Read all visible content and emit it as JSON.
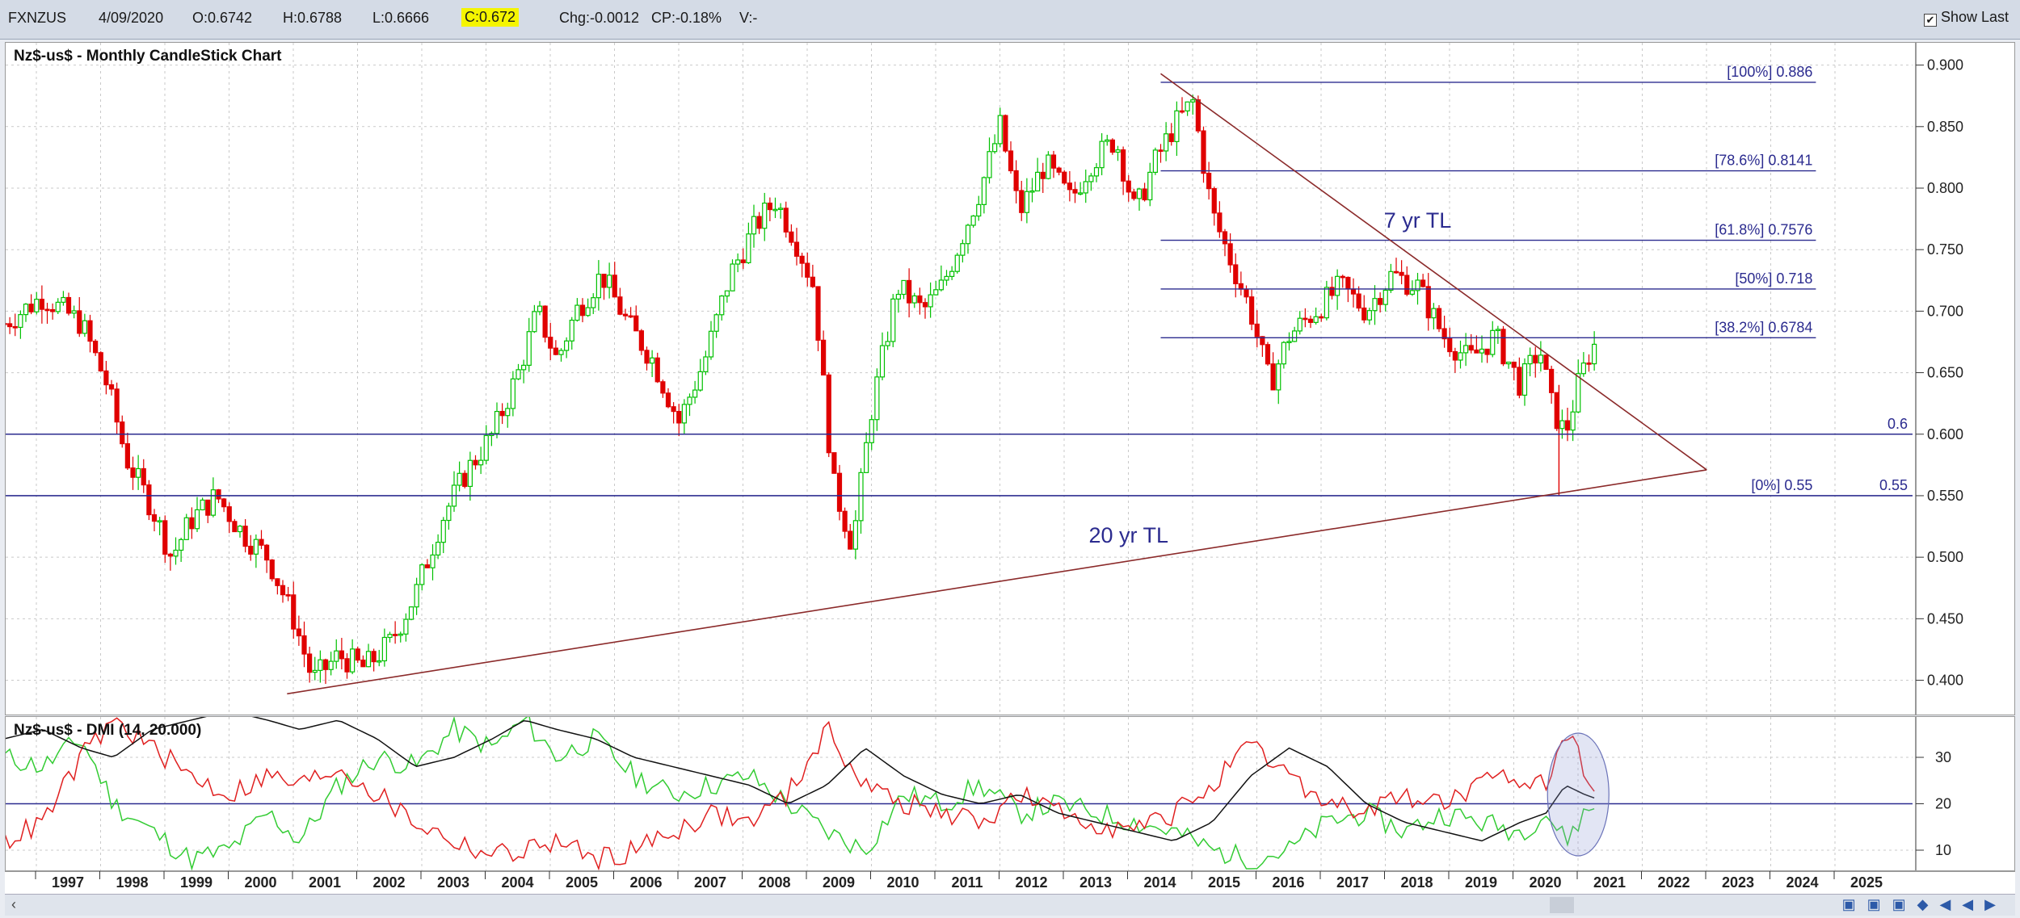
{
  "toolbar": {
    "symbol": "FXNZUS",
    "date": "4/09/2020",
    "open": "O:0.6742",
    "high": "H:0.6788",
    "low": "L:0.6666",
    "close": "C:0.672",
    "change": "Chg:-0.0012",
    "change_pct": "CP:-0.18%",
    "volume": "V:-",
    "show_last_label": "Show Last",
    "show_last_checked": true
  },
  "colors": {
    "up_candle": "#00c000",
    "down_candle": "#e00000",
    "horizontal_lines": "#2b2b8f",
    "trendline": "#8b2a2a",
    "dmi_plus": "#33cc33",
    "dmi_minus": "#e02020",
    "adx": "#111111",
    "close_highlight": "#f5f500"
  },
  "chart_data": [
    {
      "type": "candlestick",
      "title": "Nz$-us$ - Monthly CandleStick Chart",
      "ylim": [
        0.38,
        0.905
      ],
      "xlim": [
        1996.0,
        2025.9
      ],
      "y_ticks": [
        "0.400",
        "0.450",
        "0.500",
        "0.550",
        "0.600",
        "0.650",
        "0.700",
        "0.750",
        "0.800",
        "0.850",
        "0.900"
      ],
      "x_ticks": [
        "1997",
        "1998",
        "1999",
        "2000",
        "2001",
        "2002",
        "2003",
        "2004",
        "2005",
        "2006",
        "2007",
        "2008",
        "2009",
        "2010",
        "2011",
        "2012",
        "2013",
        "2014",
        "2015",
        "2016",
        "2017",
        "2018",
        "2019",
        "2020",
        "2021",
        "2022",
        "2023",
        "2024",
        "2025"
      ],
      "grid": true,
      "close_points": [
        [
          1996.0,
          0.69
        ],
        [
          1996.6,
          0.712
        ],
        [
          1997.2,
          0.69
        ],
        [
          1997.6,
          0.64
        ],
        [
          1997.9,
          0.58
        ],
        [
          1998.3,
          0.54
        ],
        [
          1998.6,
          0.5
        ],
        [
          1998.9,
          0.53
        ],
        [
          1999.3,
          0.55
        ],
        [
          1999.7,
          0.52
        ],
        [
          2000.1,
          0.5
        ],
        [
          2000.5,
          0.45
        ],
        [
          2000.8,
          0.4
        ],
        [
          2001.2,
          0.42
        ],
        [
          2001.6,
          0.41
        ],
        [
          2002.0,
          0.43
        ],
        [
          2002.4,
          0.47
        ],
        [
          2002.8,
          0.53
        ],
        [
          2003.2,
          0.57
        ],
        [
          2003.6,
          0.6
        ],
        [
          2004.0,
          0.65
        ],
        [
          2004.3,
          0.7
        ],
        [
          2004.6,
          0.66
        ],
        [
          2004.9,
          0.7
        ],
        [
          2005.3,
          0.73
        ],
        [
          2005.7,
          0.69
        ],
        [
          2006.1,
          0.66
        ],
        [
          2006.5,
          0.61
        ],
        [
          2006.9,
          0.66
        ],
        [
          2007.3,
          0.73
        ],
        [
          2007.7,
          0.77
        ],
        [
          2008.0,
          0.79
        ],
        [
          2008.3,
          0.76
        ],
        [
          2008.6,
          0.72
        ],
        [
          2008.9,
          0.56
        ],
        [
          2009.2,
          0.51
        ],
        [
          2009.5,
          0.62
        ],
        [
          2009.9,
          0.72
        ],
        [
          2010.3,
          0.7
        ],
        [
          2010.6,
          0.72
        ],
        [
          2010.9,
          0.76
        ],
        [
          2011.2,
          0.8
        ],
        [
          2011.5,
          0.85
        ],
        [
          2011.8,
          0.78
        ],
        [
          2012.2,
          0.82
        ],
        [
          2012.6,
          0.79
        ],
        [
          2012.9,
          0.82
        ],
        [
          2013.3,
          0.84
        ],
        [
          2013.6,
          0.78
        ],
        [
          2013.9,
          0.82
        ],
        [
          2014.2,
          0.85
        ],
        [
          2014.5,
          0.87
        ],
        [
          2014.8,
          0.78
        ],
        [
          2015.1,
          0.74
        ],
        [
          2015.4,
          0.7
        ],
        [
          2015.7,
          0.64
        ],
        [
          2016.0,
          0.68
        ],
        [
          2016.4,
          0.7
        ],
        [
          2016.8,
          0.72
        ],
        [
          2017.2,
          0.7
        ],
        [
          2017.6,
          0.73
        ],
        [
          2018.0,
          0.72
        ],
        [
          2018.4,
          0.68
        ],
        [
          2018.8,
          0.66
        ],
        [
          2019.2,
          0.68
        ],
        [
          2019.6,
          0.64
        ],
        [
          2019.9,
          0.67
        ],
        [
          2020.1,
          0.62
        ],
        [
          2020.3,
          0.6
        ],
        [
          2020.5,
          0.64
        ],
        [
          2020.7,
          0.67
        ],
        [
          2020.75,
          0.672
        ]
      ],
      "horizontal_levels": [
        {
          "label": "[100%] 0.886",
          "value": 0.886
        },
        {
          "label": "[78.6%] 0.8141",
          "value": 0.8141
        },
        {
          "label": "[61.8%] 0.7576",
          "value": 0.7576
        },
        {
          "label": "[50%] 0.718",
          "value": 0.718
        },
        {
          "label": "[38.2%] 0.6784",
          "value": 0.6784
        },
        {
          "label": "[0%] 0.55",
          "value": 0.55
        }
      ],
      "support_lines": [
        {
          "label": "0.6",
          "value": 0.6
        },
        {
          "label": "0.55",
          "value": 0.55
        }
      ],
      "trendlines": [
        {
          "label": "7 yr TL",
          "from": [
            2014.0,
            0.893
          ],
          "to": [
            2022.5,
            0.571
          ]
        },
        {
          "label": "20 yr TL",
          "from": [
            2000.4,
            0.389
          ],
          "to": [
            2022.5,
            0.571
          ]
        }
      ]
    },
    {
      "type": "line",
      "title": "Nz$-us$ - DMI (14, 20.000)",
      "ylim": [
        6,
        38
      ],
      "y_ticks": [
        "10",
        "20",
        "30"
      ],
      "reference_line": 20,
      "series": [
        {
          "name": "+DI",
          "color": "#33cc33",
          "x": [
            1996.0,
            1996.6,
            1997.2,
            1997.7,
            1998.3,
            1998.9,
            1999.5,
            2000.1,
            2000.6,
            2001.2,
            2001.8,
            2002.4,
            2003.0,
            2003.6,
            2004.1,
            2004.6,
            2005.2,
            2005.8,
            2006.4,
            2007.0,
            2007.6,
            2008.2,
            2008.8,
            2009.4,
            2010.0,
            2010.6,
            2011.2,
            2011.8,
            2012.4,
            2013.0,
            2013.6,
            2014.2,
            2014.8,
            2015.4,
            2016.0,
            2016.6,
            2017.2,
            2017.8,
            2018.4,
            2019.0,
            2019.6,
            2020.0,
            2020.3,
            2020.6,
            2020.8
          ],
          "y": [
            30,
            28,
            34,
            20,
            14,
            8,
            10,
            18,
            12,
            24,
            30,
            28,
            36,
            32,
            38,
            30,
            34,
            26,
            22,
            24,
            26,
            20,
            14,
            10,
            22,
            20,
            24,
            18,
            20,
            18,
            16,
            14,
            10,
            8,
            10,
            16,
            18,
            14,
            18,
            16,
            14,
            18,
            12,
            18,
            20
          ]
        },
        {
          "name": "-DI",
          "color": "#e02020",
          "x": [
            1996.0,
            1996.6,
            1997.2,
            1997.7,
            1998.3,
            1998.9,
            1999.5,
            2000.1,
            2000.6,
            2001.2,
            2001.8,
            2002.4,
            2003.0,
            2003.6,
            2004.1,
            2004.6,
            2005.2,
            2005.8,
            2006.4,
            2007.0,
            2007.6,
            2008.2,
            2008.8,
            2009.4,
            2010.0,
            2010.6,
            2011.2,
            2011.8,
            2012.4,
            2013.0,
            2013.6,
            2014.2,
            2014.8,
            2015.4,
            2016.0,
            2016.6,
            2017.2,
            2017.8,
            2018.4,
            2019.0,
            2019.6,
            2020.0,
            2020.3,
            2020.6,
            2020.8
          ],
          "y": [
            12,
            16,
            30,
            38,
            32,
            26,
            22,
            26,
            24,
            28,
            22,
            16,
            12,
            9,
            10,
            12,
            8,
            10,
            14,
            18,
            16,
            22,
            36,
            24,
            20,
            18,
            16,
            22,
            18,
            16,
            14,
            18,
            24,
            32,
            26,
            20,
            18,
            22,
            20,
            24,
            26,
            24,
            36,
            28,
            24
          ]
        },
        {
          "name": "ADX",
          "color": "#111111",
          "x": [
            1996.0,
            1996.6,
            1997.2,
            1997.7,
            1998.3,
            1998.9,
            1999.5,
            2000.1,
            2000.6,
            2001.2,
            2001.8,
            2002.4,
            2003.0,
            2003.6,
            2004.1,
            2004.6,
            2005.2,
            2005.8,
            2006.4,
            2007.0,
            2007.6,
            2008.2,
            2008.8,
            2009.4,
            2010.0,
            2010.6,
            2011.2,
            2011.8,
            2012.4,
            2013.0,
            2013.6,
            2014.2,
            2014.8,
            2015.4,
            2016.0,
            2016.6,
            2017.2,
            2017.8,
            2018.4,
            2019.0,
            2019.6,
            2020.0,
            2020.3,
            2020.6,
            2020.8
          ],
          "y": [
            34,
            36,
            32,
            30,
            36,
            38,
            40,
            38,
            36,
            38,
            34,
            28,
            30,
            34,
            38,
            36,
            34,
            30,
            28,
            26,
            24,
            20,
            24,
            32,
            26,
            22,
            20,
            22,
            18,
            16,
            14,
            12,
            16,
            26,
            32,
            28,
            20,
            16,
            14,
            12,
            16,
            18,
            24,
            22,
            21
          ]
        }
      ]
    }
  ],
  "x_axis_labels": [
    "1997",
    "1998",
    "1999",
    "2000",
    "2001",
    "2002",
    "2003",
    "2004",
    "2005",
    "2006",
    "2007",
    "2008",
    "2009",
    "2010",
    "2011",
    "2012",
    "2013",
    "2014",
    "2015",
    "2016",
    "2017",
    "2018",
    "2019",
    "2020",
    "2021",
    "2022",
    "2023",
    "2024",
    "2025"
  ],
  "scrollbar": {
    "left_arrow": "‹",
    "right_arrow": "›"
  }
}
